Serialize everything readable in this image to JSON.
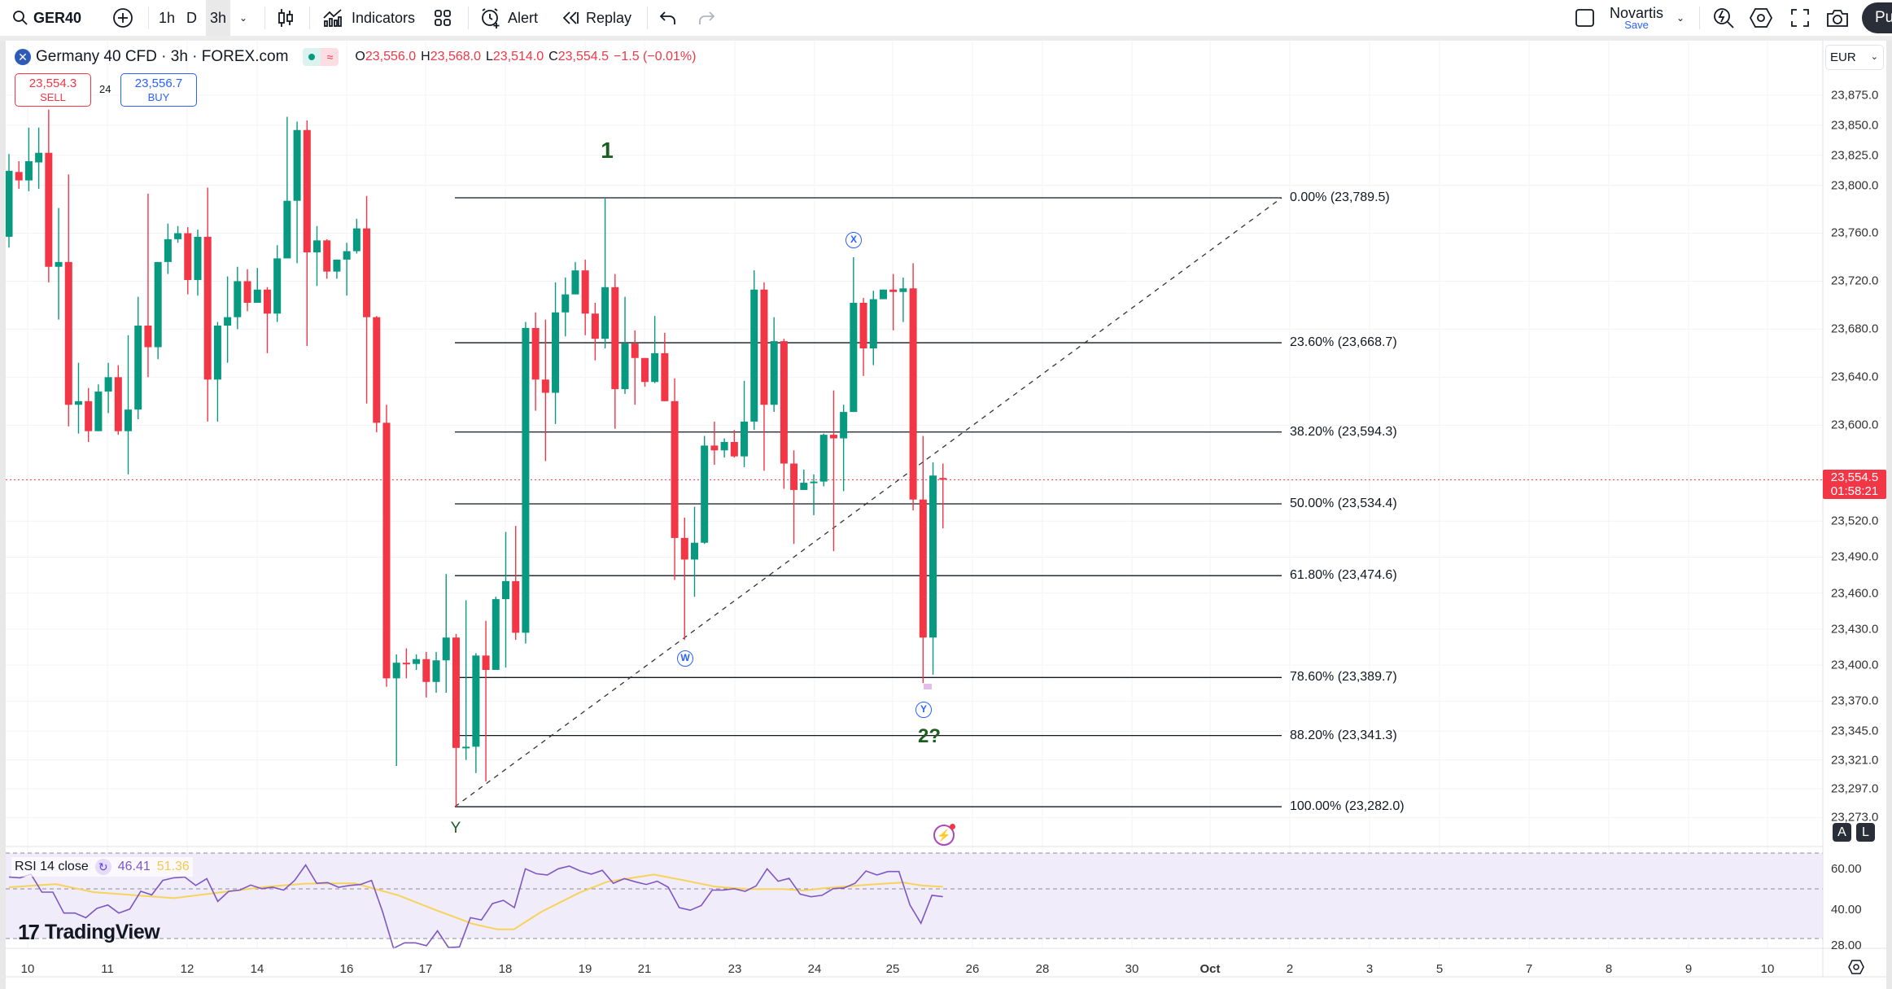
{
  "toolbar": {
    "symbol": "GER40",
    "intervals": [
      "1h",
      "D",
      "3h"
    ],
    "active_interval": "3h",
    "indicators_label": "Indicators",
    "alert_label": "Alert",
    "replay_label": "Replay",
    "layout_name": "Novartis",
    "save_label": "Save",
    "publish_label": "Pu"
  },
  "legend": {
    "title": "Germany 40 CFD · 3h · FOREX.com",
    "o_label": "O",
    "o": "23,556.0",
    "h_label": "H",
    "h": "23,568.0",
    "l_label": "L",
    "l": "23,514.0",
    "c_label": "C",
    "c": "23,554.5",
    "change": "−1.5 (−0.01%)"
  },
  "trade": {
    "sell_price": "23,554.3",
    "sell_label": "SELL",
    "spread": "24",
    "buy_price": "23,556.7",
    "buy_label": "BUY"
  },
  "currency": "EUR",
  "price_axis": {
    "labels": [
      23875,
      23850,
      23825,
      23800,
      23760,
      23720,
      23680,
      23640,
      23600,
      23520,
      23490,
      23460,
      23430,
      23400,
      23370,
      23345,
      23321,
      23297,
      23273
    ],
    "last_price": "23,554.5",
    "countdown": "01:58:21",
    "auto_label": "A",
    "log_label": "L"
  },
  "fib_levels": [
    {
      "label": "0.00% (23,789.5)",
      "price": 23789.5
    },
    {
      "label": "23.60% (23,668.7)",
      "price": 23668.7
    },
    {
      "label": "38.20% (23,594.3)",
      "price": 23594.3
    },
    {
      "label": "50.00% (23,534.4)",
      "price": 23534.4
    },
    {
      "label": "61.80% (23,474.6)",
      "price": 23474.6
    },
    {
      "label": "78.60% (23,389.7)",
      "price": 23389.7
    },
    {
      "label": "88.20% (23,341.3)",
      "price": 23341.3
    },
    {
      "label": "100.00% (23,282.0)",
      "price": 23282.0
    }
  ],
  "waves": {
    "one": "1",
    "x": "X",
    "w": "W",
    "y_circle": "Y",
    "two": "2?",
    "y_plain": "Y"
  },
  "rsi": {
    "label": "RSI 14 close",
    "value": "46.41",
    "ma_value": "51.36",
    "axis": [
      "60.00",
      "40.00",
      "28.00"
    ]
  },
  "time_axis": [
    "10",
    "11",
    "12",
    "14",
    "16",
    "17",
    "18",
    "19",
    "21",
    "23",
    "24",
    "25",
    "26",
    "28",
    "30",
    "Oct",
    "2",
    "3",
    "5",
    "7",
    "8",
    "9",
    "10"
  ],
  "watermark": "TradingView",
  "colors": {
    "up": "#089981",
    "down": "#F23645",
    "rsi": "#7E57C2",
    "rsi_ma": "#F7D35B",
    "wave_green": "#1B5E20",
    "wave_blue": "#2962FF"
  },
  "chart_data": {
    "type": "candlestick",
    "title": "Germany 40 CFD · 3h · FOREX.com",
    "ylim": [
      23265,
      23885
    ],
    "candles_ohlc": [
      [
        23757,
        23826,
        23748,
        23812
      ],
      [
        23811,
        23820,
        23797,
        23804
      ],
      [
        23804,
        23848,
        23795,
        23820
      ],
      [
        23819,
        23848,
        23797,
        23827
      ],
      [
        23827,
        23863,
        23719,
        23732
      ],
      [
        23732,
        23781,
        23688,
        23736
      ],
      [
        23736,
        23809,
        23599,
        23617
      ],
      [
        23617,
        23652,
        23593,
        23620
      ],
      [
        23620,
        23631,
        23586,
        23595
      ],
      [
        23595,
        23634,
        23595,
        23628
      ],
      [
        23628,
        23652,
        23610,
        23640
      ],
      [
        23640,
        23650,
        23592,
        23595
      ],
      [
        23595,
        23675,
        23559,
        23613
      ],
      [
        23613,
        23707,
        23605,
        23683
      ],
      [
        23683,
        23793,
        23640,
        23665
      ],
      [
        23665,
        23736,
        23655,
        23736
      ],
      [
        23736,
        23768,
        23726,
        23755
      ],
      [
        23755,
        23766,
        23752,
        23760
      ],
      [
        23760,
        23765,
        23709,
        23721
      ],
      [
        23721,
        23763,
        23708,
        23757
      ],
      [
        23757,
        23798,
        23603,
        23638
      ],
      [
        23638,
        23686,
        23603,
        23683
      ],
      [
        23683,
        23724,
        23652,
        23690
      ],
      [
        23690,
        23732,
        23680,
        23720
      ],
      [
        23720,
        23730,
        23695,
        23702
      ],
      [
        23702,
        23731,
        23702,
        23713
      ],
      [
        23713,
        23715,
        23660,
        23693
      ],
      [
        23693,
        23750,
        23686,
        23739
      ],
      [
        23739,
        23857,
        23739,
        23787
      ],
      [
        23787,
        23853,
        23735,
        23846
      ],
      [
        23846,
        23854,
        23666,
        23744
      ],
      [
        23744,
        23766,
        23716,
        23754
      ],
      [
        23754,
        23755,
        23722,
        23728
      ],
      [
        23728,
        23738,
        23722,
        23738
      ],
      [
        23738,
        23752,
        23708,
        23745
      ],
      [
        23745,
        23772,
        23743,
        23764
      ],
      [
        23764,
        23791,
        23618,
        23690
      ],
      [
        23690,
        23691,
        23594,
        23602
      ],
      [
        23602,
        23617,
        23382,
        23389
      ],
      [
        23389,
        23409,
        23316,
        23402
      ],
      [
        23402,
        23414,
        23389,
        23401
      ],
      [
        23401,
        23409,
        23396,
        23405
      ],
      [
        23405,
        23411,
        23373,
        23386
      ],
      [
        23386,
        23411,
        23377,
        23404
      ],
      [
        23404,
        23476,
        23377,
        23423
      ],
      [
        23423,
        23426,
        23282,
        23331
      ],
      [
        23331,
        23454,
        23321,
        23332
      ],
      [
        23332,
        23410,
        23310,
        23408
      ],
      [
        23408,
        23437,
        23303,
        23396
      ],
      [
        23396,
        23457,
        23396,
        23455
      ],
      [
        23455,
        23511,
        23398,
        23470
      ],
      [
        23470,
        23516,
        23421,
        23427
      ],
      [
        23427,
        23686,
        23418,
        23681
      ],
      [
        23681,
        23694,
        23612,
        23638
      ],
      [
        23638,
        23688,
        23570,
        23627
      ],
      [
        23627,
        23719,
        23601,
        23694
      ],
      [
        23694,
        23723,
        23674,
        23709
      ],
      [
        23709,
        23736,
        23709,
        23729
      ],
      [
        23729,
        23738,
        23675,
        23693
      ],
      [
        23693,
        23702,
        23654,
        23672
      ],
      [
        23672,
        23789.5,
        23664,
        23715
      ],
      [
        23715,
        23726,
        23597,
        23630
      ],
      [
        23630,
        23707,
        23626,
        23668
      ],
      [
        23668,
        23679,
        23617,
        23656
      ],
      [
        23656,
        23656,
        23632,
        23636
      ],
      [
        23636,
        23691,
        23635,
        23660
      ],
      [
        23660,
        23677,
        23620,
        23620
      ],
      [
        23620,
        23639,
        23471,
        23506
      ],
      [
        23506,
        23523,
        23421,
        23488
      ],
      [
        23488,
        23532,
        23457,
        23502
      ],
      [
        23502,
        23591,
        23501,
        23583
      ],
      [
        23583,
        23603,
        23567,
        23579
      ],
      [
        23579,
        23589,
        23573,
        23586
      ],
      [
        23586,
        23596,
        23573,
        23574
      ],
      [
        23574,
        23637,
        23565,
        23603
      ],
      [
        23603,
        23729,
        23596,
        23713
      ],
      [
        23713,
        23719,
        23562,
        23617
      ],
      [
        23617,
        23690,
        23611,
        23670
      ],
      [
        23670,
        23672,
        23547,
        23568
      ],
      [
        23568,
        23579,
        23501,
        23546
      ],
      [
        23546,
        23563,
        23546,
        23552
      ],
      [
        23552,
        23559,
        23525,
        23553
      ],
      [
        23553,
        23593,
        23549,
        23592
      ],
      [
        23592,
        23629,
        23495,
        23589
      ],
      [
        23589,
        23617,
        23545,
        23611
      ],
      [
        23611,
        23740,
        23611,
        23702
      ],
      [
        23702,
        23706,
        23641,
        23664
      ],
      [
        23664,
        23712,
        23650,
        23705
      ],
      [
        23705,
        23713,
        23705,
        23713
      ],
      [
        23713,
        23726,
        23679,
        23711
      ],
      [
        23711,
        23723,
        23686,
        23714
      ],
      [
        23714,
        23735,
        23529,
        23538
      ],
      [
        23538,
        23591,
        23385,
        23423
      ],
      [
        23423,
        23569,
        23392,
        23558
      ],
      [
        23556,
        23568,
        23514,
        23554.5
      ]
    ],
    "last_price": 23554.5,
    "rsi_values": [
      56.2,
      55.8,
      57.6,
      48.7,
      48.7,
      38.3,
      38.3,
      36.0,
      40.6,
      42.3,
      38.3,
      40.3,
      49.1,
      47.3,
      54.5,
      55.8,
      56.2,
      52.0,
      55.4,
      44.1,
      49.1,
      49.7,
      52.2,
      50.4,
      51.1,
      49.7,
      54.5,
      62.2,
      53.1,
      53.4,
      51.1,
      52.0,
      52.5,
      54.5,
      39.0,
      20.8,
      23.5,
      23.5,
      22.1,
      29.5,
      21.2,
      21.5,
      36.0,
      34.9,
      43.0,
      44.6,
      41.0,
      60.3,
      57.8,
      57.2,
      60.3,
      61.6,
      59.2,
      57.6,
      59.5,
      53.1,
      55.4,
      53.8,
      52.5,
      54.1,
      51.1,
      41.0,
      39.7,
      42.0,
      49.7,
      49.7,
      50.4,
      49.1,
      51.8,
      60.3,
      54.1,
      55.5,
      47.7,
      46.4,
      47.1,
      50.4,
      50.8,
      53.1,
      59.2,
      57.2,
      58.9,
      58.9,
      42.3,
      33.2,
      47.1,
      46.41
    ],
    "rsi_ma_points": [
      [
        0,
        51.1
      ],
      [
        4.7,
        52.7
      ],
      [
        8.5,
        48.7
      ],
      [
        16.6,
        45.7
      ],
      [
        21,
        48.4
      ],
      [
        26,
        51.4
      ],
      [
        29.8,
        52.9
      ],
      [
        34.8,
        53.1
      ],
      [
        39.2,
        47.1
      ],
      [
        43,
        39.7
      ],
      [
        46.7,
        32.9
      ],
      [
        49.2,
        30.2
      ],
      [
        50.8,
        30.2
      ],
      [
        53.6,
        39.0
      ],
      [
        57.4,
        48.4
      ],
      [
        60.2,
        53.8
      ],
      [
        64.9,
        57.4
      ],
      [
        68,
        54.5
      ],
      [
        71.1,
        51.4
      ],
      [
        74.3,
        50.2
      ],
      [
        78,
        50.2
      ],
      [
        79.9,
        49.5
      ],
      [
        82.4,
        50.8
      ],
      [
        86.8,
        52.5
      ],
      [
        90,
        53.5
      ],
      [
        91.8,
        52.0
      ],
      [
        94,
        51.36
      ]
    ]
  }
}
